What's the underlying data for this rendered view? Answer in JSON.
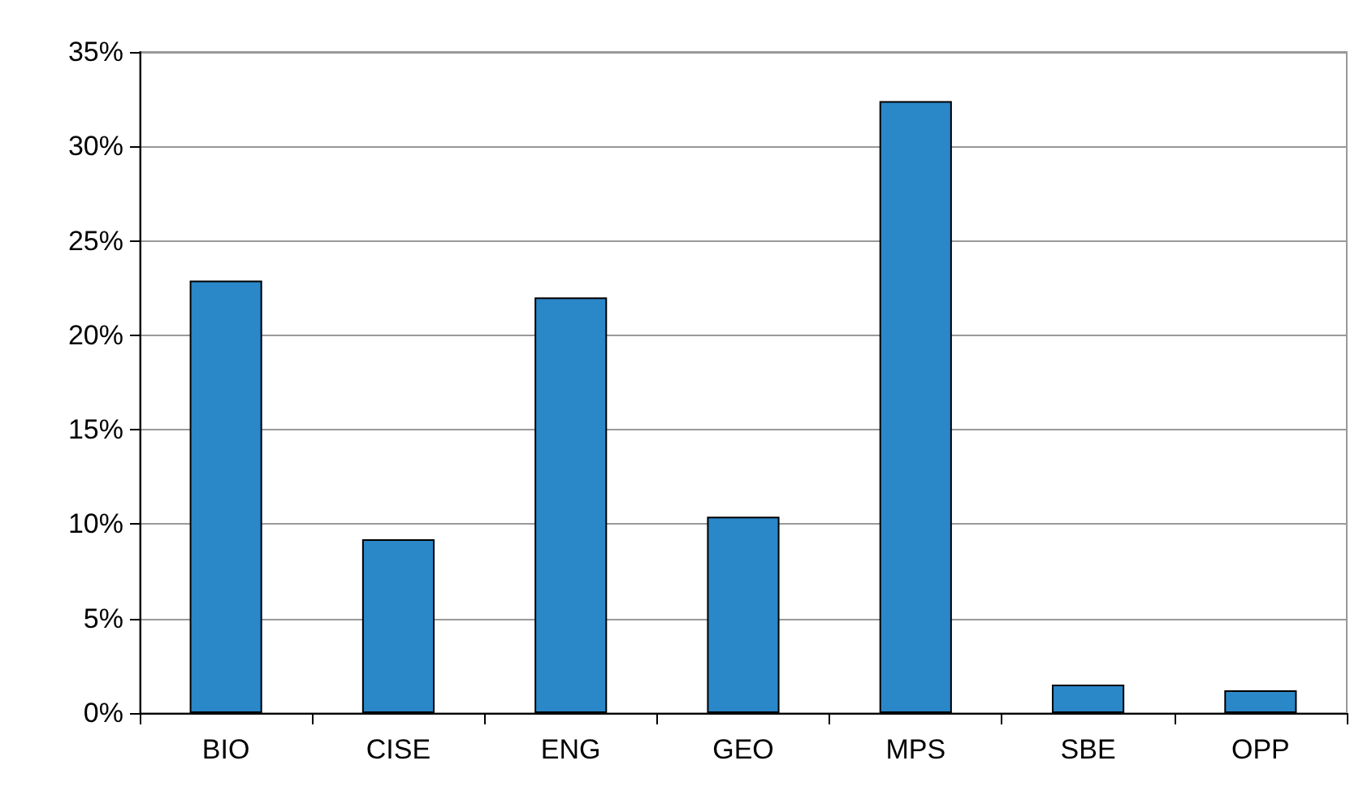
{
  "chart_data": {
    "type": "bar",
    "categories": [
      "BIO",
      "CISE",
      "ENG",
      "GEO",
      "MPS",
      "SBE",
      "OPP"
    ],
    "values": [
      22.9,
      9.2,
      22.0,
      10.4,
      32.4,
      1.5,
      1.2
    ],
    "color": "#2a87c8",
    "ylim": [
      0,
      35
    ],
    "yticks": [
      {
        "value": 0,
        "label": "0%"
      },
      {
        "value": 5,
        "label": "5%"
      },
      {
        "value": 10,
        "label": "10%"
      },
      {
        "value": 15,
        "label": "15%"
      },
      {
        "value": 20,
        "label": "20%"
      },
      {
        "value": 25,
        "label": "25%"
      },
      {
        "value": 30,
        "label": "30%"
      },
      {
        "value": 35,
        "label": "35%"
      }
    ],
    "grid": "y"
  }
}
